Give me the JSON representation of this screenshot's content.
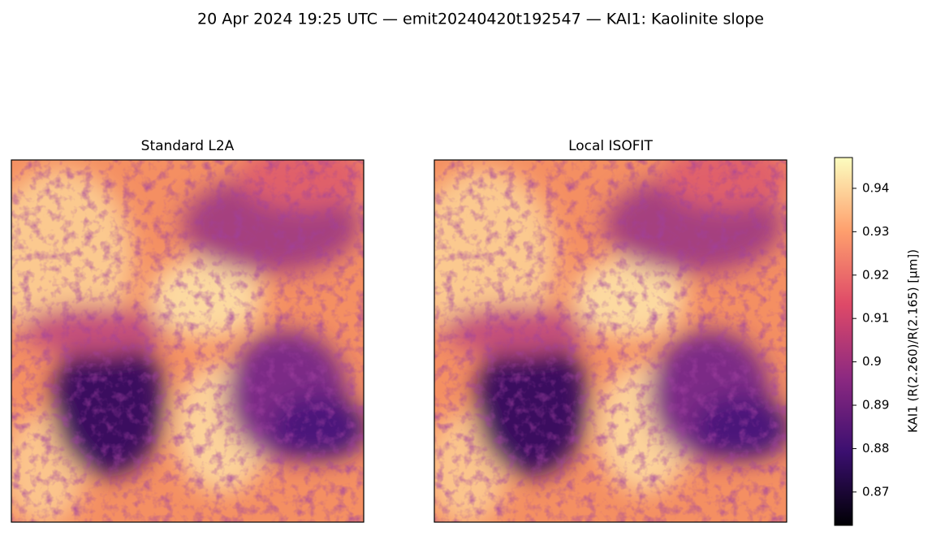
{
  "chart_data": {
    "type": "image",
    "title": "20 Apr 2024 19:25 UTC — emit20240420t192547 — KAI1: Kaolinite slope",
    "panels": [
      {
        "title": "Standard L2A"
      },
      {
        "title": "Local ISOFIT"
      }
    ],
    "colorbar": {
      "label": "KAI1  (R(2.260)/R(2.165)  [µm])",
      "lim": [
        0.8623,
        0.9471
      ],
      "ticks": [
        0.87,
        0.88,
        0.89,
        0.9,
        0.91,
        0.92,
        0.93,
        0.94
      ]
    }
  }
}
